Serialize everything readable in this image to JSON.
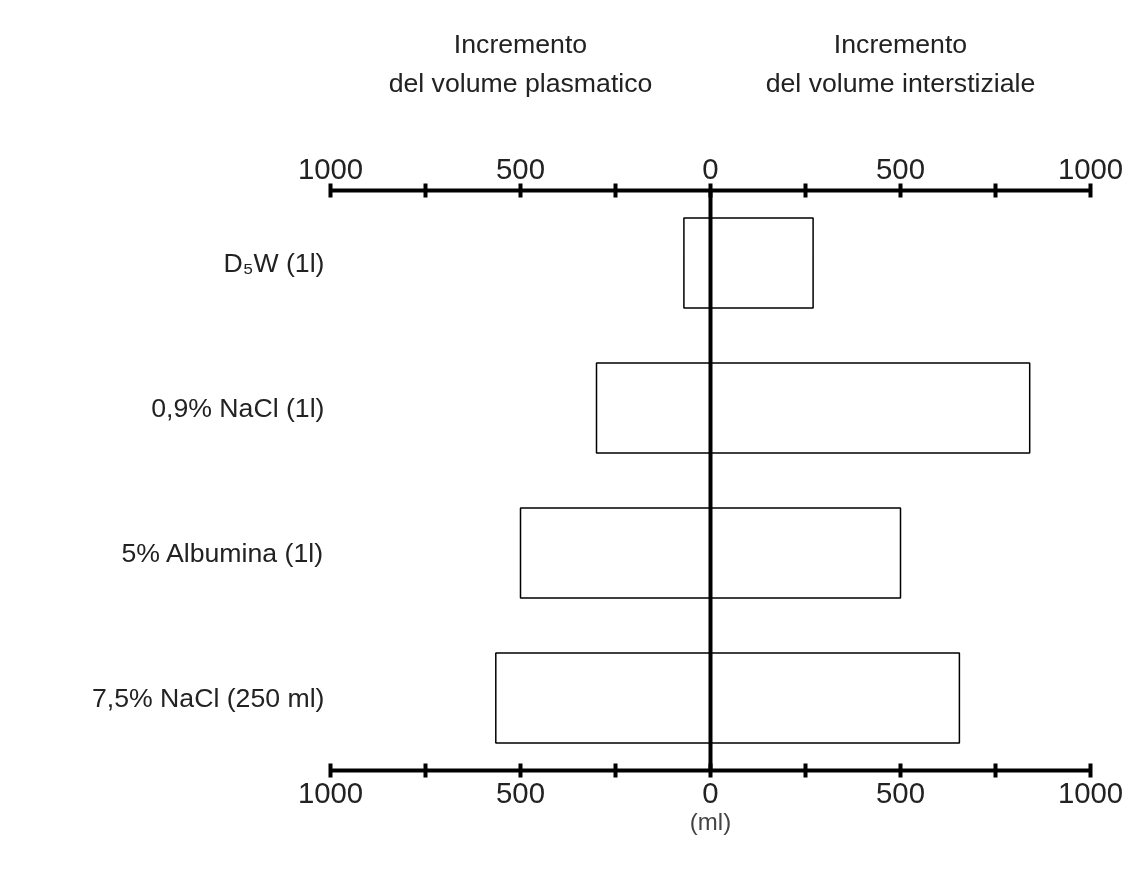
{
  "chart_data": {
    "type": "bar",
    "orientation": "horizontal",
    "xlabel": "(ml)",
    "categories": [
      "D₅W (1l)",
      "0,9% NaCl (1l)",
      "5% Albumina (1l)",
      "7,5% NaCl (250 ml)"
    ],
    "series": [
      {
        "color": "#ffffff",
        "values": [
          -70,
          -300,
          -500,
          -565
        ]
      },
      {
        "color": "#ffffff",
        "values": [
          270,
          840,
          500,
          655
        ]
      }
    ],
    "annotations": [
      "Incremento\ndel volume plasmatico",
      "Incremento\ndel volume interstiziale"
    ],
    "xlim": [
      -1000,
      1000
    ],
    "xticks": [
      {
        "value": -1000,
        "label": "1000"
      },
      {
        "value": -750,
        "label": null
      },
      {
        "value": -500,
        "label": "500"
      },
      {
        "value": -250,
        "label": null
      },
      0,
      {
        "value": 250,
        "label": null
      },
      {
        "value": 500,
        "label": "500"
      },
      {
        "value": 750,
        "label": null
      },
      {
        "value": 1000,
        "label": "1000"
      }
    ],
    "x2lim": [
      -1000,
      1000
    ],
    "x2ticks": [
      {
        "value": -1000,
        "label": "1000"
      },
      {
        "value": -750,
        "label": null
      },
      {
        "value": -500,
        "label": "500"
      },
      {
        "value": -250,
        "label": null
      },
      0,
      {
        "value": 250,
        "label": null
      },
      {
        "value": 500,
        "label": "500"
      },
      {
        "value": 750,
        "label": null
      },
      {
        "value": 1000,
        "label": "1000"
      }
    ],
    "ref_lines": [
      {
        "axis": "x",
        "value": 0,
        "color": "#000000"
      }
    ],
    "stacked": true,
    "grid": false
  }
}
